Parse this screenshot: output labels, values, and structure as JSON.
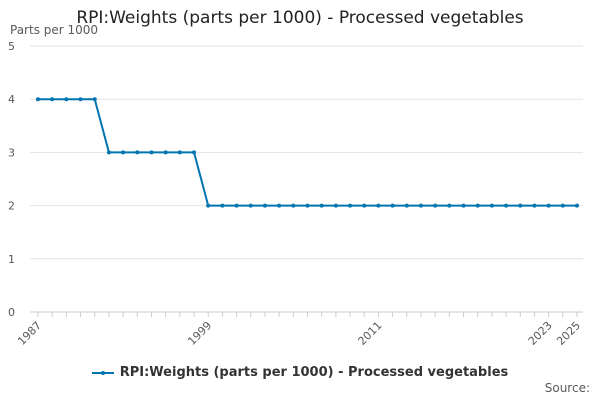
{
  "chart_data": {
    "type": "line",
    "title": "RPI:Weights (parts per 1000) - Processed vegetables",
    "ylabel": "Parts per 1000",
    "xlabel": "",
    "x": [
      1987,
      1988,
      1989,
      1990,
      1991,
      1992,
      1993,
      1994,
      1995,
      1996,
      1997,
      1998,
      1999,
      2000,
      2001,
      2002,
      2003,
      2004,
      2005,
      2006,
      2007,
      2008,
      2009,
      2010,
      2011,
      2012,
      2013,
      2014,
      2015,
      2016,
      2017,
      2018,
      2019,
      2020,
      2021,
      2022,
      2023,
      2024,
      2025
    ],
    "x_tick_labels": [
      "1987",
      "1999",
      "2011",
      "2023",
      "2025"
    ],
    "y_ticks": [
      "0",
      "1",
      "2",
      "3",
      "4",
      "5"
    ],
    "ylim": [
      0,
      5
    ],
    "grid": true,
    "legend_position": "bottom",
    "series": [
      {
        "name": "RPI:Weights (parts per 1000) - Processed vegetables",
        "color": "#0075b0",
        "values": [
          4,
          4,
          4,
          4,
          4,
          3,
          3,
          3,
          3,
          3,
          3,
          3,
          2,
          2,
          2,
          2,
          2,
          2,
          2,
          2,
          2,
          2,
          2,
          2,
          2,
          2,
          2,
          2,
          2,
          2,
          2,
          2,
          2,
          2,
          2,
          2,
          2,
          2,
          2
        ]
      }
    ]
  },
  "source_label": "Source:"
}
